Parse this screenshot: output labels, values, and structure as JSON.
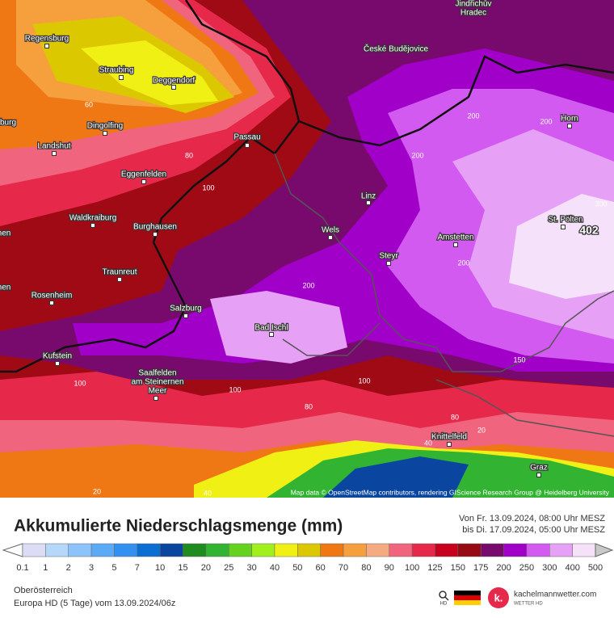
{
  "map": {
    "cities": [
      "Jindřichův",
      "Hradec",
      "Regensburg",
      "České Budějovice",
      "Straubing",
      "Deggendorf",
      "burg",
      "Dingolfing",
      "Horn",
      "Passau",
      "Landshut",
      "Eggenfelden",
      "Linz",
      "Waldkraiburg",
      "St. Pölten",
      "hen",
      "Burghausen",
      "Wels",
      "Amstetten",
      "Steyr",
      "Traunreut",
      "hen",
      "Rosenheim",
      "Salzburg",
      "Bad Ischl",
      "Kufstein",
      "Saalfelden",
      "am Steinernen",
      "Meer",
      "Knittelfeld",
      "Graz"
    ],
    "contour_labels": [
      "60",
      "80",
      "100",
      "200",
      "200",
      "200",
      "300",
      "200",
      "200",
      "150",
      "100",
      "100",
      "100",
      "80",
      "80",
      "40",
      "20",
      "20",
      "40"
    ],
    "max_label": "402",
    "attribution": "Map data © OpenStreetMap contributors, rendering GIScience Research Group @ Heidelberg University"
  },
  "legend": {
    "title": "Akkumulierte Niederschlagsmenge (mm)",
    "period": [
      "Von Fr. 13.09.2024, 08:00 Uhr MESZ",
      "bis Di. 17.09.2024, 05:00 Uhr MESZ"
    ],
    "scale": [
      0.1,
      1,
      2,
      3,
      5,
      7,
      10,
      15,
      20,
      25,
      30,
      40,
      50,
      60,
      70,
      80,
      90,
      100,
      125,
      150,
      175,
      200,
      250,
      300,
      400,
      500
    ],
    "colors": [
      "#ffffff",
      "#dcdcf5",
      "#b4d7fa",
      "#8cc3fa",
      "#5aaaf5",
      "#3291f0",
      "#0a6ed2",
      "#0a46a0",
      "#1e8c1e",
      "#32b432",
      "#64d21e",
      "#a0f01e",
      "#f0f014",
      "#dcc800",
      "#f07814",
      "#f5a03c",
      "#f5aa82",
      "#f0647d",
      "#e6284b",
      "#c8001e",
      "#960a14",
      "#780a6e",
      "#a000c8",
      "#d25af0",
      "#e6a0f5",
      "#f5e1fa",
      "#c8c8c8"
    ]
  },
  "footer": {
    "region": "Oberösterreich",
    "model": "Europa HD (5 Tage) vom  13.09.2024/06z",
    "logo": "k.",
    "brand": "kachelmannwetter.com",
    "brand_sub": "WETTER HD",
    "icon_label": "HD"
  }
}
